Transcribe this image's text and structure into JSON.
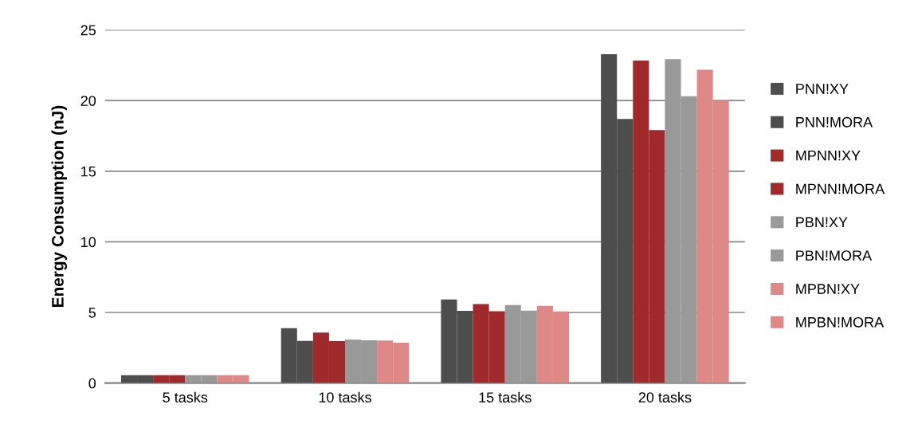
{
  "chart_data": {
    "type": "bar",
    "ylabel": "Energy Consumption (nJ)",
    "categories": [
      "5 tasks",
      "10 tasks",
      "15 tasks",
      "20 tasks"
    ],
    "ylim": [
      0,
      25
    ],
    "yticks": [
      0,
      5,
      10,
      15,
      20,
      25
    ],
    "grid": "y",
    "legend": "right",
    "series": [
      {
        "name": "PNN!XY",
        "color": "#4d4d4d",
        "values": [
          0.55,
          3.89,
          5.92,
          23.28
        ]
      },
      {
        "name": "PNN!MORA",
        "color": "#4d4d4d",
        "values": [
          0.55,
          2.99,
          5.11,
          18.7
        ]
      },
      {
        "name": "MPNN!XY",
        "color": "#a0292b",
        "values": [
          0.55,
          3.58,
          5.59,
          22.83
        ]
      },
      {
        "name": "MPNN!MORA",
        "color": "#a0292b",
        "values": [
          0.55,
          2.97,
          5.09,
          17.91
        ]
      },
      {
        "name": "PBN!XY",
        "color": "#999999",
        "values": [
          0.55,
          3.08,
          5.52,
          22.93
        ]
      },
      {
        "name": "PBN!MORA",
        "color": "#999999",
        "values": [
          0.55,
          3.03,
          5.13,
          20.31
        ]
      },
      {
        "name": "MPBN!XY",
        "color": "#de8888",
        "values": [
          0.55,
          3.01,
          5.46,
          22.19
        ]
      },
      {
        "name": "MPBN!MORA",
        "color": "#de8888",
        "values": [
          0.55,
          2.86,
          5.07,
          20.0
        ]
      }
    ]
  }
}
